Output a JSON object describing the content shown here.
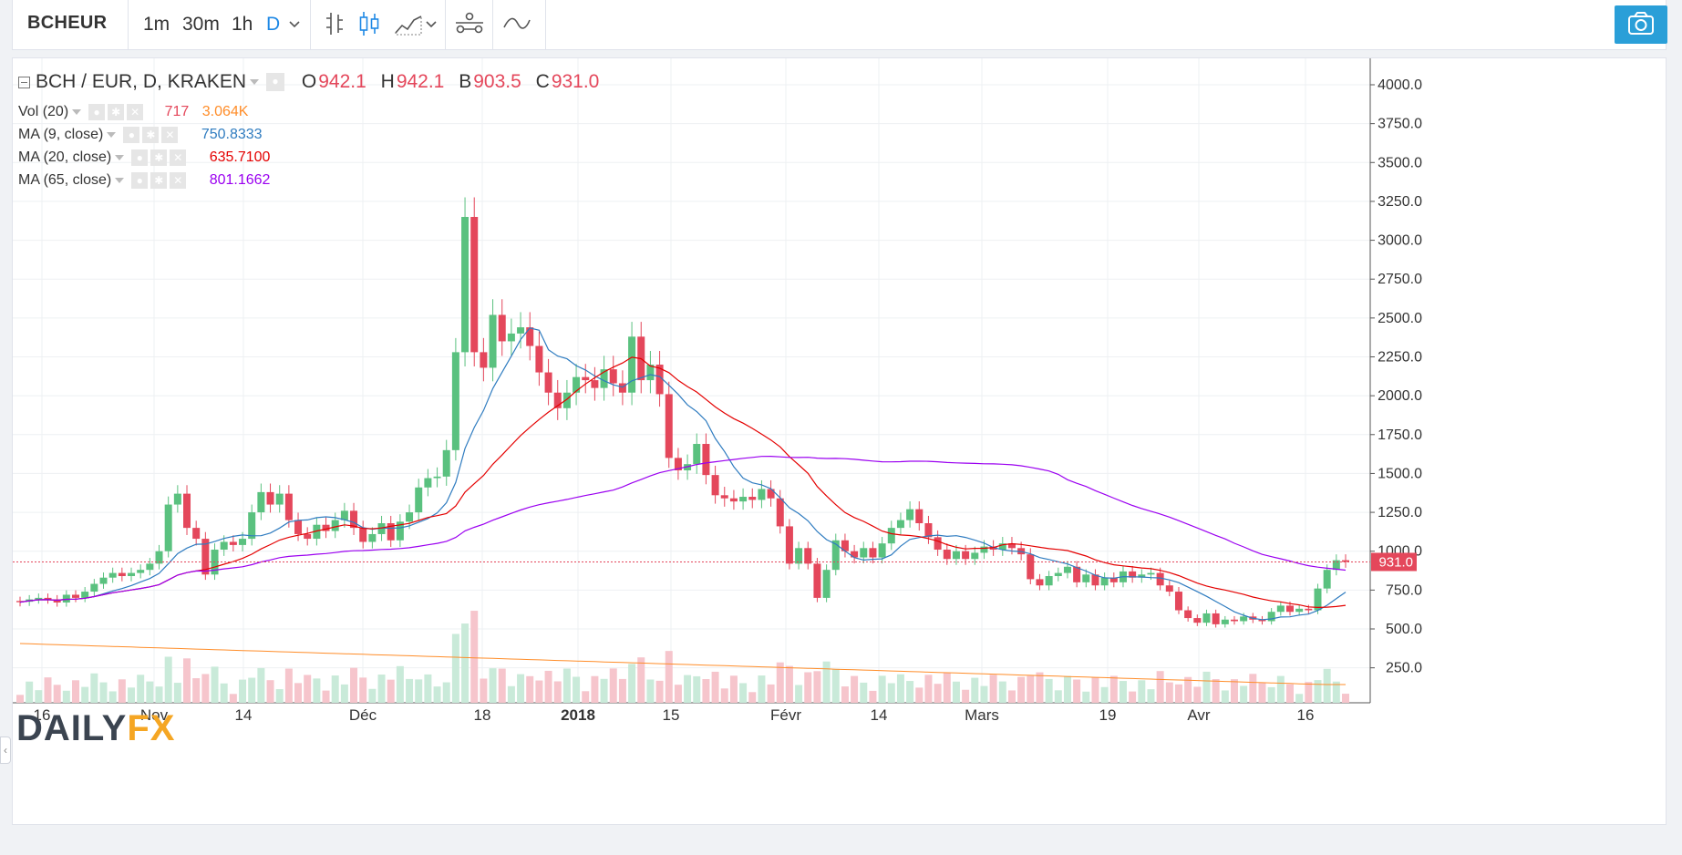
{
  "toolbar": {
    "symbol": "BCHEUR",
    "intervals": [
      "1m",
      "30m",
      "1h",
      "D"
    ],
    "active_interval": "D",
    "icons": [
      "bar-style-icon",
      "candle-style-icon",
      "area-style-icon",
      "indicators-icon",
      "compare-icon",
      "snapshot-camera-icon"
    ]
  },
  "legend": {
    "title": "BCH / EUR, D, KRAKEN",
    "o_label": "O",
    "o": "942.1",
    "h_label": "H",
    "h": "942.1",
    "b_label": "B",
    "b": "903.5",
    "c_label": "C",
    "c": "931.0",
    "vol_name": "Vol (20)",
    "vol_val": "717",
    "vol_ma": "3.064K",
    "ma9_name": "MA (9, close)",
    "ma9_val": "750.8333",
    "ma20_name": "MA (20, close)",
    "ma20_val": "635.7100",
    "ma65_name": "MA (65, close)",
    "ma65_val": "801.1662"
  },
  "watermark": {
    "part1": "DAILY",
    "part2": "FX"
  },
  "colors": {
    "up": "#26a69a",
    "up_light": "#5ac17f",
    "down": "#e4475b",
    "ma9": "#2f7cc0",
    "ma20": "#e40000",
    "ma65": "#9b00f0",
    "vol_ma": "#ff8d29"
  },
  "chart_data": {
    "type": "candlestick",
    "symbol": "BCH / EUR",
    "exchange": "KRAKEN",
    "interval": "D",
    "ylim": [
      0,
      4000
    ],
    "y_ticks": [
      "250.0",
      "500.0",
      "750.0",
      "1000.0",
      "1250.0",
      "1500.0",
      "1750.0",
      "2000.0",
      "2250.0",
      "2500.0",
      "2750.0",
      "3000.0",
      "3250.0",
      "3500.0",
      "3750.0",
      "4000.0"
    ],
    "x_ticks": [
      "16",
      "Nov",
      "14",
      "Déc",
      "18",
      "2018",
      "15",
      "Févr",
      "14",
      "Mars",
      "19",
      "Avr",
      "16"
    ],
    "last_price": "931.0",
    "series_close": [
      [
        680,
        672
      ],
      [
        675,
        690
      ],
      [
        690,
        700
      ],
      [
        700,
        690
      ],
      [
        690,
        670
      ],
      [
        670,
        720
      ],
      [
        720,
        700
      ],
      [
        700,
        740
      ],
      [
        740,
        790
      ],
      [
        790,
        830
      ],
      [
        830,
        860
      ],
      [
        860,
        840
      ],
      [
        840,
        860
      ],
      [
        860,
        880
      ],
      [
        880,
        920
      ],
      [
        920,
        1000
      ],
      [
        1000,
        1300
      ],
      [
        1300,
        1370
      ],
      [
        1370,
        1150
      ],
      [
        1150,
        1080
      ],
      [
        1080,
        850
      ],
      [
        850,
        1010
      ],
      [
        1010,
        1060
      ],
      [
        1060,
        1040
      ],
      [
        1040,
        1080
      ],
      [
        1080,
        1250
      ],
      [
        1250,
        1380
      ],
      [
        1380,
        1300
      ],
      [
        1300,
        1370
      ],
      [
        1370,
        1200
      ],
      [
        1200,
        1110
      ],
      [
        1110,
        1080
      ],
      [
        1080,
        1170
      ],
      [
        1170,
        1130
      ],
      [
        1130,
        1200
      ],
      [
        1200,
        1260
      ],
      [
        1260,
        1150
      ],
      [
        1150,
        1060
      ],
      [
        1060,
        1110
      ],
      [
        1110,
        1180
      ],
      [
        1180,
        1070
      ],
      [
        1070,
        1190
      ],
      [
        1190,
        1250
      ],
      [
        1250,
        1410
      ],
      [
        1410,
        1470
      ],
      [
        1470,
        1480
      ],
      [
        1480,
        1650
      ],
      [
        1650,
        2280
      ],
      [
        2280,
        3150
      ],
      [
        3150,
        2280
      ],
      [
        2280,
        2180
      ],
      [
        2180,
        2520
      ],
      [
        2520,
        2350
      ],
      [
        2350,
        2400
      ],
      [
        2400,
        2440
      ],
      [
        2440,
        2320
      ],
      [
        2320,
        2150
      ],
      [
        2150,
        2020
      ],
      [
        2020,
        1920
      ],
      [
        1920,
        2020
      ],
      [
        2020,
        2120
      ],
      [
        2120,
        2100
      ],
      [
        2100,
        2050
      ],
      [
        2050,
        2170
      ],
      [
        2170,
        2080
      ],
      [
        2080,
        2020
      ],
      [
        2020,
        2380
      ],
      [
        2380,
        2100
      ],
      [
        2100,
        2200
      ],
      [
        2200,
        2010
      ],
      [
        2010,
        1600
      ],
      [
        1600,
        1520
      ],
      [
        1520,
        1560
      ],
      [
        1560,
        1690
      ],
      [
        1690,
        1490
      ],
      [
        1490,
        1360
      ],
      [
        1360,
        1340
      ],
      [
        1340,
        1320
      ],
      [
        1320,
        1350
      ],
      [
        1350,
        1330
      ],
      [
        1330,
        1400
      ],
      [
        1400,
        1340
      ],
      [
        1340,
        1160
      ],
      [
        1160,
        920
      ],
      [
        920,
        1020
      ],
      [
        1020,
        920
      ],
      [
        920,
        700
      ],
      [
        700,
        880
      ],
      [
        880,
        1070
      ],
      [
        1070,
        1000
      ],
      [
        1000,
        960
      ],
      [
        960,
        1020
      ],
      [
        1020,
        960
      ],
      [
        960,
        1050
      ],
      [
        1050,
        1150
      ],
      [
        1150,
        1200
      ],
      [
        1200,
        1270
      ],
      [
        1270,
        1180
      ],
      [
        1180,
        1090
      ],
      [
        1090,
        1010
      ],
      [
        1010,
        950
      ],
      [
        950,
        1000
      ],
      [
        1000,
        950
      ],
      [
        950,
        990
      ],
      [
        990,
        1030
      ],
      [
        1030,
        1010
      ],
      [
        1010,
        1050
      ],
      [
        1050,
        1020
      ],
      [
        1020,
        980
      ],
      [
        980,
        820
      ],
      [
        820,
        780
      ],
      [
        780,
        840
      ],
      [
        840,
        860
      ],
      [
        860,
        900
      ],
      [
        900,
        800
      ],
      [
        800,
        850
      ],
      [
        850,
        780
      ],
      [
        780,
        830
      ],
      [
        830,
        800
      ],
      [
        800,
        870
      ],
      [
        870,
        830
      ],
      [
        830,
        850
      ],
      [
        850,
        860
      ],
      [
        860,
        780
      ],
      [
        780,
        740
      ],
      [
        740,
        620
      ],
      [
        620,
        570
      ],
      [
        570,
        540
      ],
      [
        540,
        600
      ],
      [
        600,
        530
      ],
      [
        530,
        560
      ],
      [
        560,
        550
      ],
      [
        550,
        580
      ],
      [
        580,
        560
      ],
      [
        560,
        550
      ],
      [
        550,
        610
      ],
      [
        610,
        650
      ],
      [
        650,
        610
      ],
      [
        610,
        630
      ],
      [
        630,
        620
      ],
      [
        620,
        760
      ],
      [
        760,
        880
      ],
      [
        880,
        942
      ],
      [
        942,
        931
      ]
    ]
  }
}
